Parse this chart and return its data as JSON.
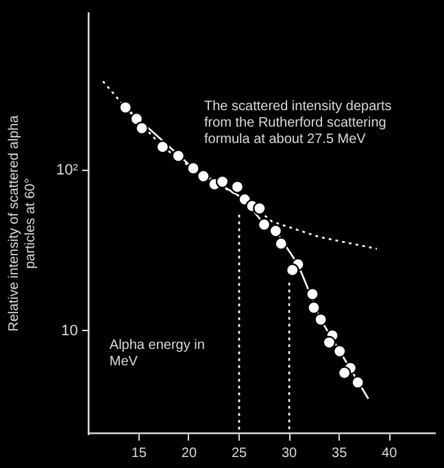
{
  "chart_data": {
    "type": "scatter",
    "xlabel": "Alpha energy in MeV",
    "ylabel": "Relative intensity of scattered alpha particles at 60°",
    "annotations": [
      "The scattered intensity departs from the Rutherford scattering formula at about 27.5 MeV"
    ],
    "xlim": [
      10,
      44.5
    ],
    "xticks": [
      15,
      20,
      25,
      30,
      35,
      40
    ],
    "ylim": [
      2.3,
      950
    ],
    "yticks": [
      10,
      {
        "value": 100,
        "label": "10²"
      }
    ],
    "log": "y",
    "grid": false,
    "legend": false,
    "series": [
      {
        "color": "#ffffff",
        "marker": "circle",
        "x": [
          13.65,
          14.76,
          15.28,
          17.36,
          18.93,
          20.42,
          21.43,
          22.54,
          23.33,
          24.82,
          25.56,
          26.3,
          27.04,
          27.5,
          28.65,
          29.19,
          30.88,
          30.32,
          32.32,
          32.46,
          33.15,
          34.31,
          33.99,
          35.04,
          36.11,
          35.51,
          36.85
        ],
        "values": [
          246,
          209,
          183,
          140,
          123,
          103,
          92,
          82,
          85,
          79,
          66,
          60,
          58,
          46,
          42,
          35,
          26,
          24,
          17,
          14,
          11.8,
          9.4,
          8.5,
          7.5,
          5.9,
          5.5,
          4.8
        ]
      },
      {
        "type": "line",
        "color": "#ffffff",
        "line_style": "solid",
        "marker": "none",
        "x": [
          13.65,
          20.42,
          25.56,
          27.5,
          28.65,
          30.88,
          33.15,
          37.9
        ],
        "values": [
          246,
          103,
          66,
          46,
          42,
          26,
          11.8,
          3.8
        ]
      },
      {
        "type": "line",
        "color": "#ffffff",
        "line_style": "dotted",
        "marker": "none",
        "x": [
          11.4,
          13.65,
          17.36,
          21.43,
          25.56,
          28.3,
          32.96,
          38.75
        ],
        "values": [
          358,
          246,
          140,
          92,
          66,
          48,
          38.6,
          32.5
        ]
      },
      {
        "type": "line",
        "color": "#ffffff",
        "line_style": "dotted",
        "marker": "none",
        "x": [
          25,
          25
        ],
        "values": [
          53,
          2.3
        ]
      },
      {
        "type": "line",
        "color": "#ffffff",
        "line_style": "dotted",
        "marker": "none",
        "x": [
          30,
          30
        ],
        "values": [
          20,
          2.3
        ]
      }
    ]
  }
}
